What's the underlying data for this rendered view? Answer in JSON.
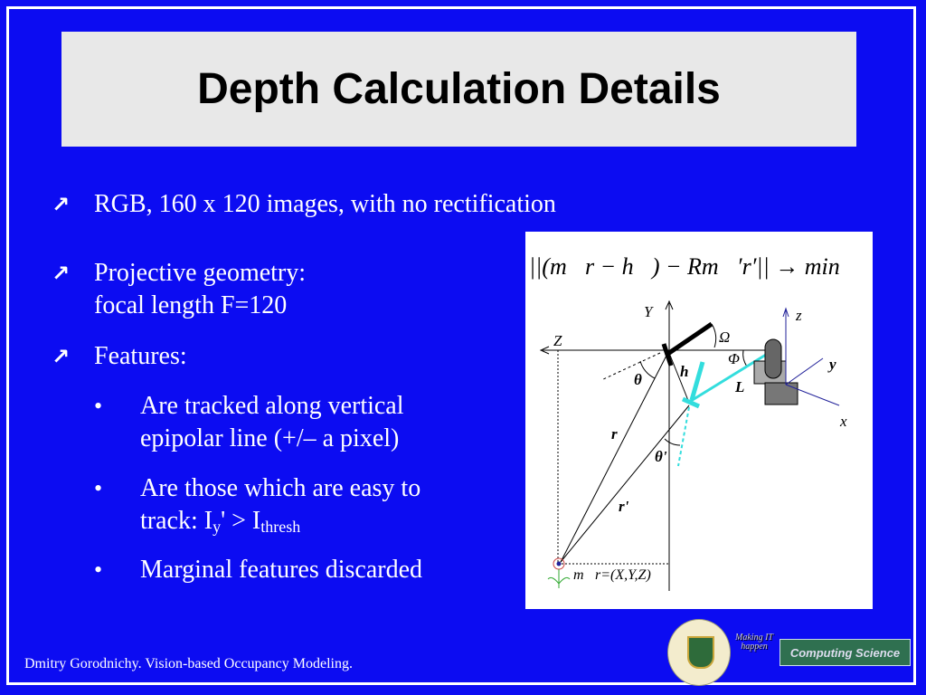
{
  "title": "Depth Calculation Details",
  "bullets": [
    {
      "text": "RGB, 160 x 120 images, with no rectification"
    },
    {
      "line1": "Projective geometry:",
      "line2": "focal length  F=120"
    },
    {
      "text": "Features:"
    }
  ],
  "sub_bullets": [
    {
      "line1": "Are tracked along vertical",
      "line2": "epipolar line (+/– a pixel)"
    },
    {
      "line1": "Are those which  are easy to",
      "line2_prefix": "track: I",
      "sub1": "y",
      "mid": "' > I",
      "sub2": "thresh"
    },
    {
      "text": "Marginal features discarded"
    }
  ],
  "bullet_glyph": "↗",
  "sub_bullet_glyph": "•",
  "figure": {
    "formula": "||(m⃗r − h⃗) − Rm⃗′r′|| → min",
    "labels": {
      "Y": "Y",
      "Z": "Z",
      "omega": "Ω",
      "phi": "Φ",
      "theta": "θ",
      "h": "h",
      "L": "L",
      "r": "r",
      "theta2": "θ'",
      "r2": "r'",
      "z": "z",
      "y": "y",
      "x": "x",
      "point": "m⃗r=(X,Y,Z)"
    }
  },
  "footer": "Dmitry Gorodnichy. Vision-based Occupancy Modeling.",
  "logos": {
    "university": "UNIVERSITY OF ALBERTA",
    "slogan": "Making IT happen",
    "department": "Computing Science"
  },
  "colors": {
    "background": "#0c0cf2",
    "title_box": "#e8e8e8",
    "cyan": "#33dddd",
    "axis_blue": "#22229a"
  }
}
